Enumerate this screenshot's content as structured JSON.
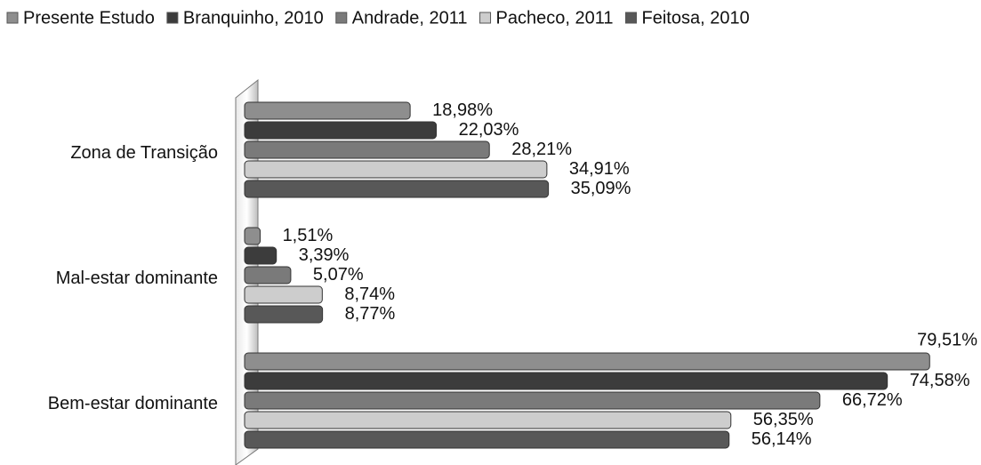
{
  "chart_data": {
    "type": "hbar",
    "categories": [
      "Zona de Transição",
      "Mal-estar dominante",
      "Bem-estar dominante"
    ],
    "xlim": [
      0,
      80
    ],
    "series": [
      {
        "name": "Presente Estudo",
        "color": "#8e8e8e",
        "values": [
          18.98,
          1.51,
          79.51
        ],
        "value_labels": [
          "18,98%",
          "1,51%",
          "79,51%"
        ]
      },
      {
        "name": "Branquinho, 2010",
        "color": "#3c3c3c",
        "values": [
          22.03,
          3.39,
          74.58
        ],
        "value_labels": [
          "22,03%",
          "3,39%",
          "74,58%"
        ]
      },
      {
        "name": "Andrade, 2011",
        "color": "#7a7a7a",
        "values": [
          28.21,
          5.07,
          66.72
        ],
        "value_labels": [
          "28,21%",
          "5,07%",
          "66,72%"
        ]
      },
      {
        "name": "Pacheco, 2011",
        "color": "#cdcdcd",
        "values": [
          34.91,
          8.74,
          56.35
        ],
        "value_labels": [
          "34,91%",
          "8,74%",
          "56,35%"
        ]
      },
      {
        "name": "Feitosa, 2010",
        "color": "#585858",
        "values": [
          35.09,
          8.77,
          56.14
        ],
        "value_labels": [
          "35,09%",
          "8,77%",
          "56,14%"
        ]
      }
    ],
    "legend": "top"
  }
}
